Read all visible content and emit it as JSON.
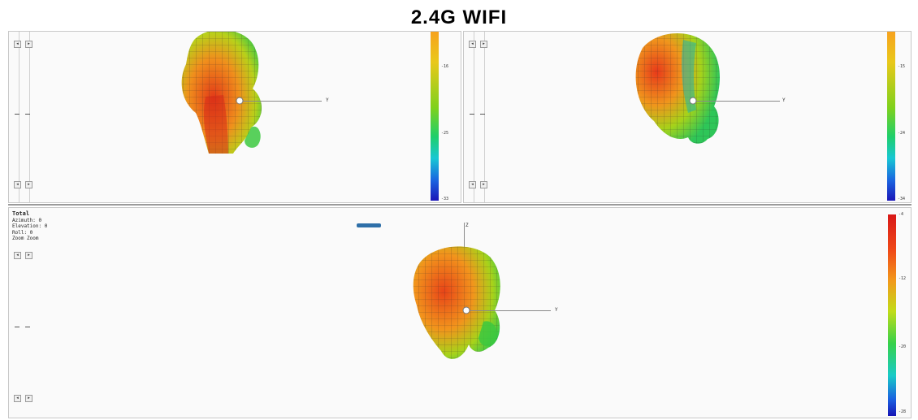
{
  "title": "2.4G  WIFI",
  "panels": [
    {
      "colorbar_ticks": [
        "-16",
        "-25",
        "-33"
      ],
      "axis_label": "Y",
      "icons": [
        "triangle-up-icon",
        "triangle-down-icon"
      ]
    },
    {
      "colorbar_ticks": [
        "-15",
        "-24",
        "-34"
      ],
      "axis_label": "Y"
    },
    {
      "header": "Total",
      "info_lines": [
        "Azimuth: 0",
        "Elevation: 0",
        "Roll: 0",
        "Zoom Zoom"
      ],
      "colorbar_ticks": [
        "-4",
        "-12",
        "-20",
        "-28"
      ],
      "axis_label_y": "Y",
      "axis_label_z": "Z"
    }
  ],
  "colors": {
    "hot": "#d81818",
    "warm": "#f29a1b",
    "mid": "#7fd11c",
    "cool": "#17c7d4",
    "cold": "#1715b5"
  }
}
